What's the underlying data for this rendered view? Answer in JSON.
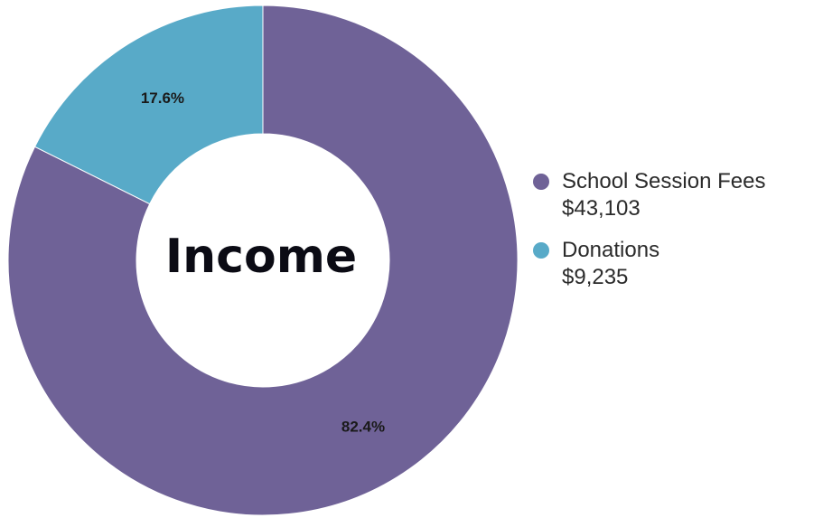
{
  "chart_data": {
    "type": "pie",
    "style": "donut",
    "title": "Income",
    "categories": [
      "School Session Fees",
      "Donations"
    ],
    "values": [
      43103,
      9235
    ],
    "value_labels": [
      "$43,103",
      "$9,235"
    ],
    "percent_labels": [
      "82.4%",
      "17.6%"
    ],
    "colors": [
      "#6f6297",
      "#58aac8"
    ],
    "legend_position": "right"
  }
}
